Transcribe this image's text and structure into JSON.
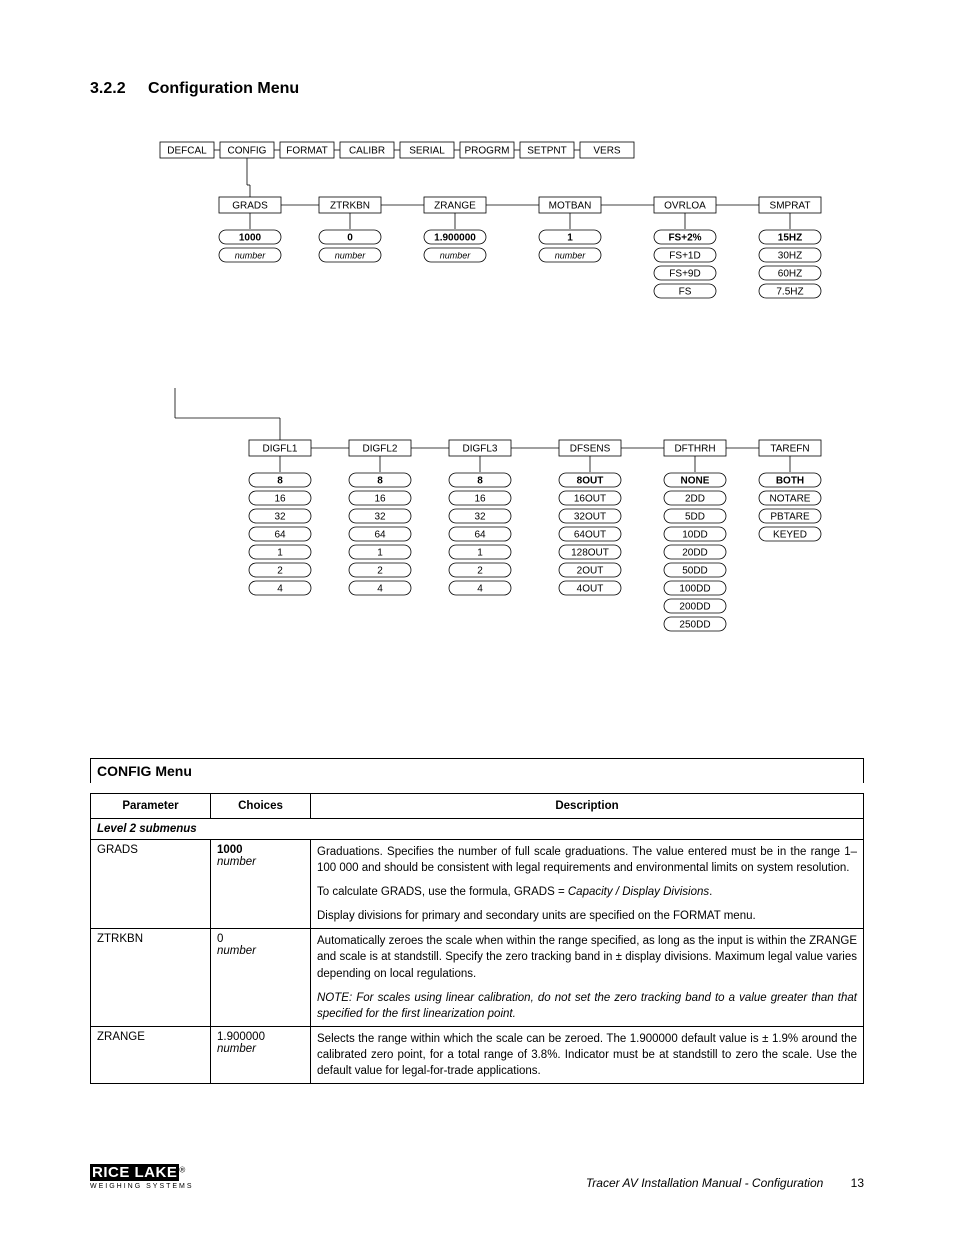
{
  "section": {
    "number": "3.2.2",
    "title": "Configuration Menu"
  },
  "diagram": {
    "topMenu": [
      "DEFCAL",
      "CONFIG",
      "FORMAT",
      "CALIBR",
      "SERIAL",
      "PROGRM",
      "SETPNT",
      "VERS"
    ],
    "row1": {
      "GRADS": {
        "defaultBold": "1000",
        "optsItalic": [
          "number"
        ]
      },
      "ZTRKBN": {
        "defaultBold": "0",
        "optsItalic": [
          "number"
        ]
      },
      "ZRANGE": {
        "defaultBold": "1.900000",
        "optsItalic": [
          "number"
        ]
      },
      "MOTBAN": {
        "defaultBold": "1",
        "optsItalic": [
          "number"
        ]
      },
      "OVRLOA": {
        "defaultBold": "FS+2%",
        "opts": [
          "FS+1D",
          "FS+9D",
          "FS"
        ]
      },
      "SMPRAT": {
        "defaultBold": "15HZ",
        "opts": [
          "30HZ",
          "60HZ",
          "7.5HZ"
        ]
      }
    },
    "row2": {
      "DIGFL1": {
        "defaultBold": "8",
        "opts": [
          "16",
          "32",
          "64",
          "1",
          "2",
          "4"
        ]
      },
      "DIGFL2": {
        "defaultBold": "8",
        "opts": [
          "16",
          "32",
          "64",
          "1",
          "2",
          "4"
        ]
      },
      "DIGFL3": {
        "defaultBold": "8",
        "opts": [
          "16",
          "32",
          "64",
          "1",
          "2",
          "4"
        ]
      },
      "DFSENS": {
        "defaultBold": "8OUT",
        "opts": [
          "16OUT",
          "32OUT",
          "64OUT",
          "128OUT",
          "2OUT",
          "4OUT"
        ]
      },
      "DFTHRH": {
        "defaultBold": "NONE",
        "opts": [
          "2DD",
          "5DD",
          "10DD",
          "20DD",
          "50DD",
          "100DD",
          "200DD",
          "250DD"
        ]
      },
      "TAREFN": {
        "defaultBold": "BOTH",
        "opts": [
          "NOTARE",
          "PBTARE",
          "KEYED"
        ]
      }
    }
  },
  "table": {
    "title": "CONFIG Menu",
    "headers": [
      "Parameter",
      "Choices",
      "Description"
    ],
    "subheader": "Level 2 submenus",
    "rows": [
      {
        "param": "GRADS",
        "choiceBold": "1000",
        "choiceItalic": "number",
        "desc": [
          "Graduations. Specifies the number of full scale graduations. The value entered must be in the range 1–100 000 and should be consistent with legal requirements and environmental limits on system resolution.",
          "To calculate GRADS, use the formula, GRADS = <i>Capacity / Display Divisions</i>.",
          "Display divisions for primary and secondary units are specified on the FORMAT menu."
        ]
      },
      {
        "param": "ZTRKBN",
        "choicePlain": "0",
        "choiceItalic": "number",
        "desc": [
          "Automatically zeroes the scale when within the range specified, as long as the input is within the ZRANGE and scale is at standstill. Specify the zero tracking band in ± display divisions. Maximum legal value varies depending on local regulations.",
          "<i>NOTE: For scales using linear calibration, do not set the zero tracking band to a value greater than that specified for the first linearization point.</i>"
        ]
      },
      {
        "param": "ZRANGE",
        "choicePlain": "1.900000",
        "choiceItalic": "number",
        "desc": [
          "Selects the range within which the scale can be zeroed. The 1.900000 default value is ± 1.9% around the calibrated zero point, for a total range of 3.8%. Indicator must be at standstill to zero the scale. Use the default value for legal-for-trade applications."
        ]
      }
    ]
  },
  "footer": {
    "logo": "RICE LAKE",
    "logoSub": "WEIGHING SYSTEMS",
    "title": "Tracer AV Installation Manual - Configuration",
    "page": "13"
  }
}
